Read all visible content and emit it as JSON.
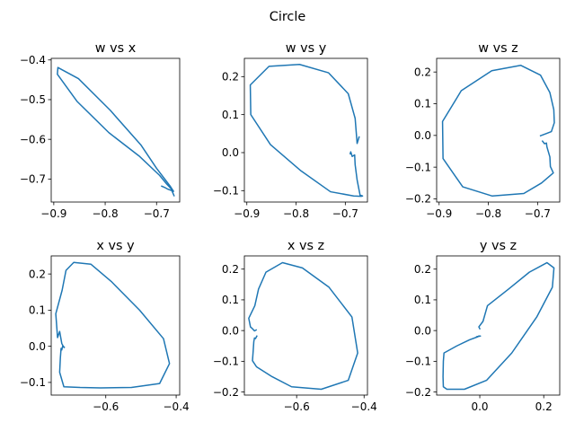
{
  "figure": {
    "title": "Circle"
  },
  "style": {
    "line_color": "#1f77b4",
    "axis_color": "#000000",
    "background": "#ffffff"
  },
  "chart_data": [
    {
      "type": "line",
      "title": "w vs x",
      "xlim": [
        -0.905,
        -0.655
      ],
      "ylim": [
        -0.758,
        -0.396
      ],
      "xticks": [
        -0.9,
        -0.8,
        -0.7
      ],
      "xtick_labels": [
        "−0.9",
        "−0.8",
        "−0.7"
      ],
      "yticks": [
        -0.7,
        -0.6,
        -0.5,
        -0.4
      ],
      "ytick_labels": [
        "−0.7",
        "−0.6",
        "−0.5",
        "−0.4"
      ],
      "grid": false,
      "x": [
        -0.69,
        -0.683,
        -0.679,
        -0.675,
        -0.671,
        -0.667,
        -0.673,
        -0.7,
        -0.73,
        -0.79,
        -0.852,
        -0.892,
        -0.893,
        -0.855,
        -0.793,
        -0.734,
        -0.694,
        -0.68,
        -0.672,
        -0.666
      ],
      "y": [
        -0.718,
        -0.722,
        -0.725,
        -0.727,
        -0.729,
        -0.731,
        -0.719,
        -0.673,
        -0.615,
        -0.527,
        -0.447,
        -0.419,
        -0.436,
        -0.504,
        -0.583,
        -0.642,
        -0.691,
        -0.713,
        -0.724,
        -0.742
      ]
    },
    {
      "type": "line",
      "title": "w vs y",
      "xlim": [
        -0.905,
        -0.655
      ],
      "ylim": [
        -0.13,
        0.248
      ],
      "xticks": [
        -0.9,
        -0.8,
        -0.7
      ],
      "xtick_labels": [
        "−0.9",
        "−0.8",
        "−0.7"
      ],
      "yticks": [
        -0.1,
        0.0,
        0.1,
        0.2
      ],
      "ytick_labels": [
        "−0.1",
        "0.0",
        "0.1",
        "0.2"
      ],
      "grid": false,
      "x": [
        -0.69,
        -0.689,
        -0.686,
        -0.681,
        -0.68,
        -0.676,
        -0.67,
        -0.665,
        -0.668,
        -0.683,
        -0.73,
        -0.79,
        -0.852,
        -0.892,
        -0.893,
        -0.855,
        -0.793,
        -0.734,
        -0.694,
        -0.68,
        -0.676,
        -0.672
      ],
      "y": [
        -0.003,
        0.002,
        -0.01,
        -0.006,
        -0.032,
        -0.072,
        -0.112,
        -0.114,
        -0.115,
        -0.114,
        -0.103,
        -0.048,
        0.021,
        0.1,
        0.178,
        0.227,
        0.232,
        0.21,
        0.155,
        0.09,
        0.024,
        0.041
      ]
    },
    {
      "type": "line",
      "title": "w vs z",
      "xlim": [
        -0.905,
        -0.655
      ],
      "ylim": [
        -0.21,
        0.243
      ],
      "xticks": [
        -0.9,
        -0.8,
        -0.7
      ],
      "xtick_labels": [
        "−0.9",
        "−0.8",
        "−0.7"
      ],
      "yticks": [
        -0.2,
        -0.1,
        0.0,
        0.1,
        0.2
      ],
      "ytick_labels": [
        "−0.2",
        "−0.1",
        "0.0",
        "0.1",
        "0.2"
      ],
      "grid": false,
      "x": [
        -0.69,
        -0.686,
        -0.682,
        -0.681,
        -0.675,
        -0.674,
        -0.668,
        -0.692,
        -0.728,
        -0.792,
        -0.852,
        -0.892,
        -0.893,
        -0.855,
        -0.793,
        -0.734,
        -0.694,
        -0.675,
        -0.667,
        -0.666,
        -0.672,
        -0.682,
        -0.694
      ],
      "y": [
        -0.018,
        -0.026,
        -0.024,
        -0.036,
        -0.068,
        -0.098,
        -0.118,
        -0.15,
        -0.183,
        -0.191,
        -0.162,
        -0.073,
        0.044,
        0.141,
        0.204,
        0.221,
        0.19,
        0.135,
        0.081,
        0.04,
        0.012,
        0.006,
        -0.001
      ]
    },
    {
      "type": "line",
      "title": "x vs y",
      "xlim": [
        -0.755,
        -0.39
      ],
      "ylim": [
        -0.135,
        0.25
      ],
      "xticks": [
        -0.6,
        -0.4
      ],
      "xtick_labels": [
        "−0.6",
        "−0.4"
      ],
      "yticks": [
        -0.1,
        0.0,
        0.1,
        0.2
      ],
      "ytick_labels": [
        "−0.1",
        "0.0",
        "0.1",
        "0.2"
      ],
      "grid": false,
      "x": [
        -0.718,
        -0.722,
        -0.725,
        -0.727,
        -0.729,
        -0.731,
        -0.719,
        -0.673,
        -0.615,
        -0.527,
        -0.447,
        -0.419,
        -0.436,
        -0.504,
        -0.583,
        -0.642,
        -0.691,
        -0.713,
        -0.724,
        -0.742,
        -0.737,
        -0.731,
        -0.725,
        -0.72,
        -0.718
      ],
      "y": [
        -0.003,
        0.002,
        -0.01,
        -0.006,
        -0.032,
        -0.072,
        -0.112,
        -0.114,
        -0.115,
        -0.114,
        -0.103,
        -0.048,
        0.021,
        0.1,
        0.178,
        0.227,
        0.232,
        0.21,
        0.155,
        0.09,
        0.024,
        0.041,
        0.008,
        -0.002,
        -0.003
      ]
    },
    {
      "type": "line",
      "title": "x vs z",
      "xlim": [
        -0.755,
        -0.39
      ],
      "ylim": [
        -0.21,
        0.243
      ],
      "xticks": [
        -0.6,
        -0.4
      ],
      "xtick_labels": [
        "−0.6",
        "−0.4"
      ],
      "yticks": [
        -0.2,
        -0.1,
        0.0,
        0.1,
        0.2
      ],
      "ytick_labels": [
        "−0.2",
        "−0.1",
        "0.0",
        "0.1",
        "0.2"
      ],
      "grid": false,
      "x": [
        -0.718,
        -0.722,
        -0.725,
        -0.727,
        -0.729,
        -0.731,
        -0.719,
        -0.673,
        -0.615,
        -0.527,
        -0.447,
        -0.419,
        -0.436,
        -0.504,
        -0.583,
        -0.642,
        -0.691,
        -0.713,
        -0.724,
        -0.742,
        -0.737,
        -0.731,
        -0.725,
        -0.72
      ],
      "y": [
        -0.018,
        -0.026,
        -0.024,
        -0.036,
        -0.068,
        -0.098,
        -0.118,
        -0.15,
        -0.183,
        -0.191,
        -0.162,
        -0.073,
        0.044,
        0.141,
        0.204,
        0.221,
        0.19,
        0.135,
        0.081,
        0.04,
        0.012,
        0.006,
        -0.001,
        0.002
      ]
    },
    {
      "type": "line",
      "title": "y vs z",
      "xlim": [
        -0.135,
        0.25
      ],
      "ylim": [
        -0.21,
        0.243
      ],
      "xticks": [
        0.0,
        0.2
      ],
      "xtick_labels": [
        "0.0",
        "0.2"
      ],
      "yticks": [
        -0.2,
        -0.1,
        0.0,
        0.1,
        0.2
      ],
      "ytick_labels": [
        "−0.2",
        "−0.1",
        "0.0",
        "0.1",
        "0.2"
      ],
      "grid": false,
      "x": [
        -0.003,
        0.002,
        -0.01,
        -0.006,
        -0.032,
        -0.072,
        -0.112,
        -0.114,
        -0.115,
        -0.114,
        -0.103,
        -0.048,
        0.021,
        0.1,
        0.178,
        0.227,
        0.232,
        0.21,
        0.155,
        0.09,
        0.024,
        0.01,
        -0.003,
        0.0
      ],
      "y": [
        -0.018,
        -0.018,
        -0.02,
        -0.02,
        -0.03,
        -0.05,
        -0.073,
        -0.1,
        -0.15,
        -0.183,
        -0.191,
        -0.191,
        -0.162,
        -0.073,
        0.044,
        0.141,
        0.204,
        0.221,
        0.19,
        0.135,
        0.081,
        0.03,
        0.012,
        0.006
      ]
    }
  ]
}
